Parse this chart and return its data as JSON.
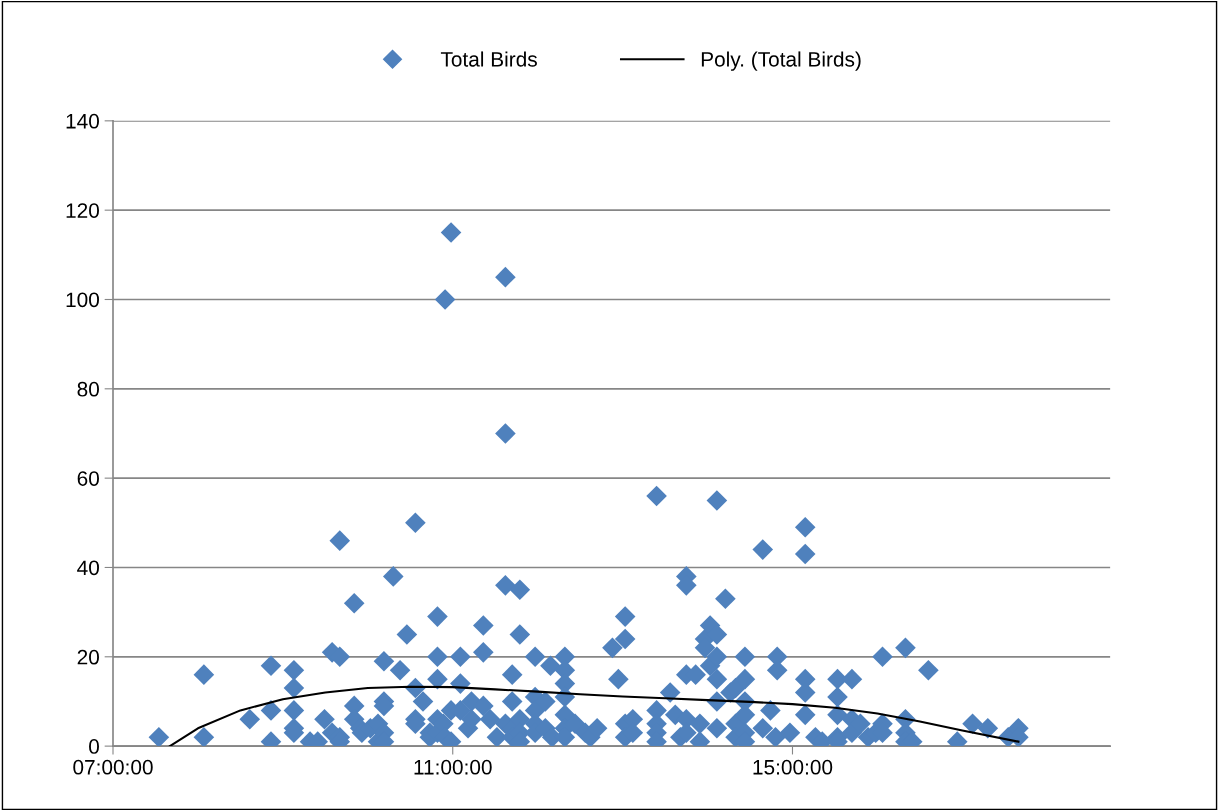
{
  "chart_data": {
    "type": "scatter",
    "legend": "top",
    "grid": "y",
    "marker": "diamond",
    "xlim": [
      7,
      18.74
    ],
    "xticks": [
      {
        "value": 7,
        "label": "07:00:00"
      },
      {
        "value": 11,
        "label": "11:00:00"
      },
      {
        "value": 15,
        "label": "15:00:00"
      }
    ],
    "ylim": [
      0,
      140
    ],
    "yticks": [
      0,
      20,
      40,
      60,
      80,
      100,
      120,
      140
    ],
    "series": [
      {
        "name": "Total Birds",
        "color": "#4f81bd",
        "x": [
          7.54,
          8.07,
          8.07,
          8.61,
          8.86,
          8.86,
          8.86,
          9.13,
          9.13,
          9.13,
          9.13,
          9.13,
          9.32,
          9.41,
          9.49,
          9.58,
          9.58,
          9.67,
          9.67,
          9.67,
          9.67,
          9.84,
          9.84,
          9.84,
          9.91,
          9.93,
          10.03,
          10.12,
          10.12,
          10.19,
          10.19,
          10.19,
          10.19,
          10.19,
          10.3,
          10.38,
          10.46,
          10.56,
          10.56,
          10.56,
          10.56,
          10.65,
          10.73,
          10.73,
          10.82,
          10.82,
          10.82,
          10.82,
          10.82,
          10.89,
          10.91,
          10.91,
          10.98,
          10.98,
          10.98,
          11.09,
          11.09,
          11.09,
          11.18,
          11.22,
          11.22,
          11.36,
          11.36,
          11.36,
          11.44,
          11.52,
          11.62,
          11.62,
          11.62,
          11.62,
          11.7,
          11.7,
          11.7,
          11.7,
          11.79,
          11.79,
          11.79,
          11.79,
          11.79,
          11.97,
          11.97,
          11.97,
          11.97,
          11.97,
          12.09,
          12.09,
          12.15,
          12.17,
          12.32,
          12.32,
          12.32,
          12.32,
          12.32,
          12.32,
          12.32,
          12.44,
          12.56,
          12.62,
          12.7,
          12.88,
          12.95,
          13.03,
          13.03,
          13.03,
          13.03,
          13.12,
          13.12,
          13.4,
          13.4,
          13.4,
          13.4,
          13.4,
          13.56,
          13.62,
          13.68,
          13.75,
          13.75,
          13.75,
          13.75,
          13.75,
          13.86,
          13.91,
          13.91,
          13.97,
          13.97,
          14.03,
          14.03,
          14.11,
          14.11,
          14.11,
          14.11,
          14.11,
          14.11,
          14.21,
          14.27,
          14.33,
          14.33,
          14.33,
          14.44,
          14.44,
          14.44,
          14.44,
          14.44,
          14.44,
          14.65,
          14.65,
          14.74,
          14.8,
          14.97,
          14.82,
          14.82,
          15.15,
          15.15,
          15.15,
          15.15,
          15.15,
          15.27,
          15.35,
          15.53,
          15.53,
          15.53,
          15.53,
          15.53,
          15.7,
          15.7,
          15.7,
          15.8,
          15.89,
          15.98,
          16.06,
          16.06,
          16.06,
          16.33,
          16.33,
          16.33,
          16.33,
          16.41,
          16.6,
          16.94,
          17.12,
          17.3,
          17.54,
          17.66,
          17.66
        ],
        "values": [
          2,
          16,
          2,
          6,
          18,
          8,
          1,
          17,
          13,
          8,
          4,
          3,
          1,
          1,
          6,
          21,
          3,
          46,
          20,
          2,
          1,
          32,
          9,
          6,
          4,
          3,
          4,
          1,
          5,
          19,
          10,
          9,
          3,
          1,
          38,
          17,
          25,
          50,
          13,
          6,
          5,
          10,
          3,
          2,
          29,
          20,
          15,
          6,
          3,
          5,
          100,
          2,
          115,
          8,
          1,
          20,
          14,
          8,
          4,
          10,
          6,
          27,
          21,
          9,
          6,
          2,
          105,
          70,
          36,
          5,
          16,
          10,
          4,
          2,
          35,
          25,
          6,
          3,
          1,
          20,
          11,
          8,
          5,
          3,
          10,
          4,
          18,
          2,
          20,
          17,
          14,
          11,
          7,
          4,
          2,
          5,
          3,
          2,
          4,
          22,
          15,
          29,
          24,
          5,
          2,
          6,
          3,
          56,
          8,
          5,
          3,
          1,
          12,
          7,
          2,
          38,
          36,
          16,
          6,
          3,
          16,
          5,
          1,
          24,
          22,
          27,
          18,
          55,
          25,
          20,
          15,
          10,
          4,
          33,
          12,
          13,
          5,
          2,
          20,
          15,
          10,
          7,
          3,
          1,
          44,
          4,
          8,
          2,
          3,
          20,
          17,
          49,
          43,
          15,
          12,
          7,
          2,
          1,
          15,
          11,
          7,
          2,
          1,
          15,
          6,
          3,
          5,
          2,
          3,
          20,
          5,
          3,
          22,
          6,
          3,
          1,
          1,
          17,
          1,
          5,
          4,
          2,
          4,
          2
        ]
      },
      {
        "name": "Poly. (Total Birds)",
        "type": "line",
        "color": "#000000",
        "marker": "none",
        "line_style": "solid",
        "x": [
          7.67,
          8.0,
          8.5,
          9.0,
          9.5,
          10.0,
          10.5,
          11.0,
          11.5,
          12.0,
          12.5,
          13.0,
          13.5,
          14.0,
          14.5,
          15.0,
          15.5,
          16.0,
          16.5,
          17.0,
          17.66
        ],
        "values": [
          0,
          4,
          8,
          10.5,
          12,
          13,
          13.3,
          13.2,
          12.7,
          12.2,
          11.6,
          11.1,
          10.7,
          10.3,
          9.9,
          9.4,
          8.6,
          7.3,
          5.5,
          3.5,
          1
        ]
      }
    ]
  }
}
